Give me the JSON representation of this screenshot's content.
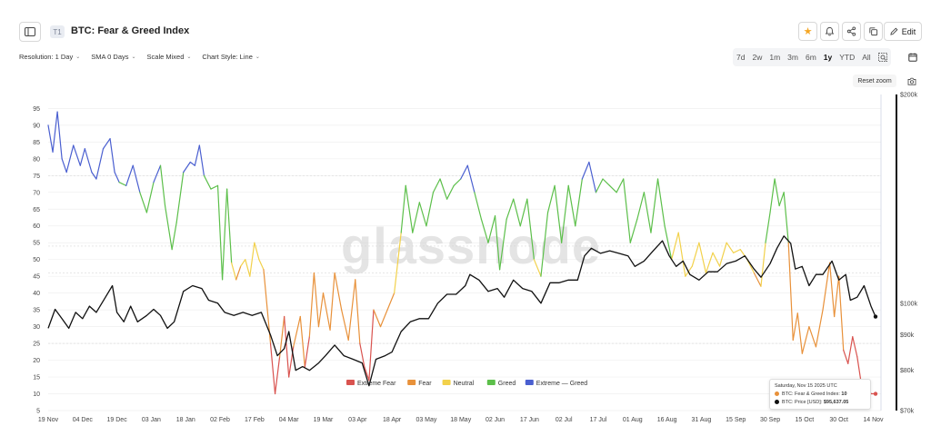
{
  "header": {
    "tier": "T1",
    "title": "BTC: Fear & Greed Index",
    "edit_label": "Edit"
  },
  "controls": {
    "resolution": "Resolution: 1 Day",
    "sma": "SMA 0 Days",
    "scale": "Scale Mixed",
    "chart_style": "Chart Style: Line"
  },
  "ranges": [
    "7d",
    "2w",
    "1m",
    "3m",
    "6m",
    "1y",
    "YTD",
    "All"
  ],
  "active_range": "1y",
  "reset_zoom": "Reset zoom",
  "watermark": "glassnode",
  "tooltip": {
    "date": "Saturday, Nov 15 2025 UTC",
    "fg_label": "BTC: Fear & Greed Index:",
    "fg_value": "10",
    "price_label": "BTC: Price [USD]:",
    "price_value": "$95,637.05"
  },
  "colors": {
    "extreme_fear": "#d9534f",
    "fear": "#e8913a",
    "neutral": "#f2d14b",
    "greed": "#5cbf4a",
    "extreme_greed": "#4a5fd0",
    "price": "#111111"
  },
  "chart_data": {
    "type": "line",
    "x_ticks": [
      "19 Nov",
      "04 Dec",
      "19 Dec",
      "03 Jan",
      "18 Jan",
      "02 Feb",
      "17 Feb",
      "04 Mar",
      "19 Mar",
      "03 Apr",
      "18 Apr",
      "03 May",
      "18 May",
      "02 Jun",
      "17 Jun",
      "02 Jul",
      "17 Jul",
      "01 Aug",
      "16 Aug",
      "31 Aug",
      "15 Sep",
      "30 Sep",
      "15 Oct",
      "30 Oct",
      "14 Nov"
    ],
    "y_left_ticks": [
      5,
      10,
      15,
      20,
      25,
      30,
      35,
      40,
      45,
      50,
      55,
      60,
      65,
      70,
      75,
      80,
      85,
      90,
      95
    ],
    "y_left_range": [
      5,
      97
    ],
    "y_right_ticks": [
      "$200k",
      "$100k",
      "$90k",
      "$80k",
      "$70k"
    ],
    "y_right_scale": "log",
    "y_right_range": [
      70000,
      200000
    ],
    "legend": [
      "Extreme Fear",
      "Fear",
      "Neutral",
      "Greed",
      "Extreme — Greed"
    ],
    "legend_position": "bottom-center",
    "fg_bands": [
      {
        "name": "Extreme Fear",
        "max": 25
      },
      {
        "name": "Fear",
        "max": 46
      },
      {
        "name": "Neutral",
        "max": 54
      },
      {
        "name": "Greed",
        "max": 75
      },
      {
        "name": "Extreme Greed",
        "max": 100
      }
    ],
    "fear_greed": [
      {
        "x": "2024-11-19",
        "y": 90
      },
      {
        "x": "2024-11-21",
        "y": 82
      },
      {
        "x": "2024-11-23",
        "y": 94
      },
      {
        "x": "2024-11-25",
        "y": 80
      },
      {
        "x": "2024-11-27",
        "y": 76
      },
      {
        "x": "2024-11-30",
        "y": 84
      },
      {
        "x": "2024-12-03",
        "y": 78
      },
      {
        "x": "2024-12-05",
        "y": 83
      },
      {
        "x": "2024-12-08",
        "y": 76
      },
      {
        "x": "2024-12-10",
        "y": 74
      },
      {
        "x": "2024-12-13",
        "y": 83
      },
      {
        "x": "2024-12-16",
        "y": 86
      },
      {
        "x": "2024-12-18",
        "y": 76
      },
      {
        "x": "2024-12-20",
        "y": 73
      },
      {
        "x": "2024-12-23",
        "y": 72
      },
      {
        "x": "2024-12-26",
        "y": 78
      },
      {
        "x": "2024-12-29",
        "y": 70
      },
      {
        "x": "2025-01-01",
        "y": 64
      },
      {
        "x": "2025-01-04",
        "y": 73
      },
      {
        "x": "2025-01-07",
        "y": 78
      },
      {
        "x": "2025-01-09",
        "y": 66
      },
      {
        "x": "2025-01-12",
        "y": 53
      },
      {
        "x": "2025-01-14",
        "y": 61
      },
      {
        "x": "2025-01-17",
        "y": 76
      },
      {
        "x": "2025-01-20",
        "y": 79
      },
      {
        "x": "2025-01-22",
        "y": 78
      },
      {
        "x": "2025-01-24",
        "y": 84
      },
      {
        "x": "2025-01-26",
        "y": 75
      },
      {
        "x": "2025-01-29",
        "y": 71
      },
      {
        "x": "2025-02-01",
        "y": 72
      },
      {
        "x": "2025-02-03",
        "y": 44
      },
      {
        "x": "2025-02-05",
        "y": 71
      },
      {
        "x": "2025-02-07",
        "y": 49
      },
      {
        "x": "2025-02-09",
        "y": 44
      },
      {
        "x": "2025-02-11",
        "y": 48
      },
      {
        "x": "2025-02-13",
        "y": 50
      },
      {
        "x": "2025-02-15",
        "y": 45
      },
      {
        "x": "2025-02-17",
        "y": 55
      },
      {
        "x": "2025-02-19",
        "y": 50
      },
      {
        "x": "2025-02-21",
        "y": 47
      },
      {
        "x": "2025-02-24",
        "y": 25
      },
      {
        "x": "2025-02-26",
        "y": 10
      },
      {
        "x": "2025-02-28",
        "y": 21
      },
      {
        "x": "2025-03-02",
        "y": 33
      },
      {
        "x": "2025-03-04",
        "y": 15
      },
      {
        "x": "2025-03-06",
        "y": 24
      },
      {
        "x": "2025-03-09",
        "y": 33
      },
      {
        "x": "2025-03-11",
        "y": 18
      },
      {
        "x": "2025-03-13",
        "y": 27
      },
      {
        "x": "2025-03-15",
        "y": 46
      },
      {
        "x": "2025-03-17",
        "y": 30
      },
      {
        "x": "2025-03-19",
        "y": 40
      },
      {
        "x": "2025-03-22",
        "y": 29
      },
      {
        "x": "2025-03-24",
        "y": 46
      },
      {
        "x": "2025-03-27",
        "y": 35
      },
      {
        "x": "2025-03-30",
        "y": 26
      },
      {
        "x": "2025-04-02",
        "y": 44
      },
      {
        "x": "2025-04-04",
        "y": 25
      },
      {
        "x": "2025-04-06",
        "y": 18
      },
      {
        "x": "2025-04-08",
        "y": 14
      },
      {
        "x": "2025-04-10",
        "y": 35
      },
      {
        "x": "2025-04-13",
        "y": 30
      },
      {
        "x": "2025-04-16",
        "y": 35
      },
      {
        "x": "2025-04-19",
        "y": 40
      },
      {
        "x": "2025-04-22",
        "y": 58
      },
      {
        "x": "2025-04-24",
        "y": 72
      },
      {
        "x": "2025-04-27",
        "y": 58
      },
      {
        "x": "2025-04-30",
        "y": 67
      },
      {
        "x": "2025-05-03",
        "y": 60
      },
      {
        "x": "2025-05-06",
        "y": 70
      },
      {
        "x": "2025-05-09",
        "y": 74
      },
      {
        "x": "2025-05-12",
        "y": 68
      },
      {
        "x": "2025-05-15",
        "y": 72
      },
      {
        "x": "2025-05-18",
        "y": 74
      },
      {
        "x": "2025-05-21",
        "y": 78
      },
      {
        "x": "2025-05-24",
        "y": 70
      },
      {
        "x": "2025-05-27",
        "y": 62
      },
      {
        "x": "2025-05-30",
        "y": 55
      },
      {
        "x": "2025-06-02",
        "y": 63
      },
      {
        "x": "2025-06-04",
        "y": 47
      },
      {
        "x": "2025-06-07",
        "y": 62
      },
      {
        "x": "2025-06-10",
        "y": 68
      },
      {
        "x": "2025-06-13",
        "y": 60
      },
      {
        "x": "2025-06-16",
        "y": 68
      },
      {
        "x": "2025-06-19",
        "y": 50
      },
      {
        "x": "2025-06-22",
        "y": 45
      },
      {
        "x": "2025-06-25",
        "y": 64
      },
      {
        "x": "2025-06-28",
        "y": 72
      },
      {
        "x": "2025-07-01",
        "y": 55
      },
      {
        "x": "2025-07-04",
        "y": 72
      },
      {
        "x": "2025-07-07",
        "y": 60
      },
      {
        "x": "2025-07-10",
        "y": 74
      },
      {
        "x": "2025-07-13",
        "y": 79
      },
      {
        "x": "2025-07-16",
        "y": 70
      },
      {
        "x": "2025-07-19",
        "y": 74
      },
      {
        "x": "2025-07-22",
        "y": 72
      },
      {
        "x": "2025-07-25",
        "y": 70
      },
      {
        "x": "2025-07-28",
        "y": 74
      },
      {
        "x": "2025-07-31",
        "y": 55
      },
      {
        "x": "2025-08-03",
        "y": 62
      },
      {
        "x": "2025-08-06",
        "y": 70
      },
      {
        "x": "2025-08-09",
        "y": 58
      },
      {
        "x": "2025-08-12",
        "y": 74
      },
      {
        "x": "2025-08-15",
        "y": 60
      },
      {
        "x": "2025-08-18",
        "y": 50
      },
      {
        "x": "2025-08-21",
        "y": 58
      },
      {
        "x": "2025-08-24",
        "y": 45
      },
      {
        "x": "2025-08-27",
        "y": 48
      },
      {
        "x": "2025-08-30",
        "y": 55
      },
      {
        "x": "2025-09-02",
        "y": 46
      },
      {
        "x": "2025-09-05",
        "y": 52
      },
      {
        "x": "2025-09-08",
        "y": 48
      },
      {
        "x": "2025-09-11",
        "y": 55
      },
      {
        "x": "2025-09-14",
        "y": 52
      },
      {
        "x": "2025-09-17",
        "y": 53
      },
      {
        "x": "2025-09-20",
        "y": 50
      },
      {
        "x": "2025-09-23",
        "y": 46
      },
      {
        "x": "2025-09-26",
        "y": 42
      },
      {
        "x": "2025-09-28",
        "y": 55
      },
      {
        "x": "2025-09-30",
        "y": 64
      },
      {
        "x": "2025-10-02",
        "y": 74
      },
      {
        "x": "2025-10-04",
        "y": 66
      },
      {
        "x": "2025-10-06",
        "y": 70
      },
      {
        "x": "2025-10-08",
        "y": 55
      },
      {
        "x": "2025-10-10",
        "y": 26
      },
      {
        "x": "2025-10-12",
        "y": 34
      },
      {
        "x": "2025-10-14",
        "y": 22
      },
      {
        "x": "2025-10-17",
        "y": 30
      },
      {
        "x": "2025-10-20",
        "y": 24
      },
      {
        "x": "2025-10-23",
        "y": 35
      },
      {
        "x": "2025-10-26",
        "y": 49
      },
      {
        "x": "2025-10-28",
        "y": 33
      },
      {
        "x": "2025-10-30",
        "y": 45
      },
      {
        "x": "2025-11-01",
        "y": 23
      },
      {
        "x": "2025-11-03",
        "y": 19
      },
      {
        "x": "2025-11-05",
        "y": 27
      },
      {
        "x": "2025-11-07",
        "y": 21
      },
      {
        "x": "2025-11-09",
        "y": 12
      },
      {
        "x": "2025-11-11",
        "y": 14
      },
      {
        "x": "2025-11-13",
        "y": 10
      },
      {
        "x": "2025-11-15",
        "y": 10
      }
    ],
    "btc_price": [
      {
        "x": "2024-11-19",
        "y": 92000
      },
      {
        "x": "2024-11-22",
        "y": 98000
      },
      {
        "x": "2024-11-25",
        "y": 95000
      },
      {
        "x": "2024-11-28",
        "y": 92000
      },
      {
        "x": "2024-12-01",
        "y": 97000
      },
      {
        "x": "2024-12-04",
        "y": 95000
      },
      {
        "x": "2024-12-07",
        "y": 99000
      },
      {
        "x": "2024-12-10",
        "y": 97000
      },
      {
        "x": "2024-12-14",
        "y": 102000
      },
      {
        "x": "2024-12-17",
        "y": 106000
      },
      {
        "x": "2024-12-19",
        "y": 97000
      },
      {
        "x": "2024-12-22",
        "y": 94000
      },
      {
        "x": "2024-12-25",
        "y": 99000
      },
      {
        "x": "2024-12-28",
        "y": 94000
      },
      {
        "x": "2025-01-01",
        "y": 96000
      },
      {
        "x": "2025-01-04",
        "y": 98000
      },
      {
        "x": "2025-01-07",
        "y": 96000
      },
      {
        "x": "2025-01-10",
        "y": 92000
      },
      {
        "x": "2025-01-13",
        "y": 94000
      },
      {
        "x": "2025-01-17",
        "y": 104000
      },
      {
        "x": "2025-01-21",
        "y": 106000
      },
      {
        "x": "2025-01-25",
        "y": 105000
      },
      {
        "x": "2025-01-28",
        "y": 101000
      },
      {
        "x": "2025-02-01",
        "y": 100000
      },
      {
        "x": "2025-02-04",
        "y": 97000
      },
      {
        "x": "2025-02-08",
        "y": 96000
      },
      {
        "x": "2025-02-12",
        "y": 97000
      },
      {
        "x": "2025-02-16",
        "y": 96000
      },
      {
        "x": "2025-02-20",
        "y": 97000
      },
      {
        "x": "2025-02-24",
        "y": 90000
      },
      {
        "x": "2025-02-27",
        "y": 84000
      },
      {
        "x": "2025-03-02",
        "y": 86000
      },
      {
        "x": "2025-03-04",
        "y": 91000
      },
      {
        "x": "2025-03-07",
        "y": 80000
      },
      {
        "x": "2025-03-10",
        "y": 81000
      },
      {
        "x": "2025-03-13",
        "y": 80000
      },
      {
        "x": "2025-03-17",
        "y": 82000
      },
      {
        "x": "2025-03-20",
        "y": 84000
      },
      {
        "x": "2025-03-24",
        "y": 87000
      },
      {
        "x": "2025-03-28",
        "y": 84000
      },
      {
        "x": "2025-04-01",
        "y": 83000
      },
      {
        "x": "2025-04-05",
        "y": 82000
      },
      {
        "x": "2025-04-08",
        "y": 76000
      },
      {
        "x": "2025-04-11",
        "y": 83000
      },
      {
        "x": "2025-04-15",
        "y": 84000
      },
      {
        "x": "2025-04-18",
        "y": 85000
      },
      {
        "x": "2025-04-22",
        "y": 91000
      },
      {
        "x": "2025-04-26",
        "y": 94000
      },
      {
        "x": "2025-04-30",
        "y": 95000
      },
      {
        "x": "2025-05-04",
        "y": 95000
      },
      {
        "x": "2025-05-08",
        "y": 100000
      },
      {
        "x": "2025-05-12",
        "y": 103000
      },
      {
        "x": "2025-05-16",
        "y": 103000
      },
      {
        "x": "2025-05-20",
        "y": 106000
      },
      {
        "x": "2025-05-22",
        "y": 110000
      },
      {
        "x": "2025-05-26",
        "y": 108000
      },
      {
        "x": "2025-05-30",
        "y": 104000
      },
      {
        "x": "2025-06-03",
        "y": 105000
      },
      {
        "x": "2025-06-06",
        "y": 102000
      },
      {
        "x": "2025-06-10",
        "y": 108000
      },
      {
        "x": "2025-06-14",
        "y": 105000
      },
      {
        "x": "2025-06-18",
        "y": 104000
      },
      {
        "x": "2025-06-22",
        "y": 100000
      },
      {
        "x": "2025-06-26",
        "y": 107000
      },
      {
        "x": "2025-06-30",
        "y": 107000
      },
      {
        "x": "2025-07-04",
        "y": 108000
      },
      {
        "x": "2025-07-08",
        "y": 108000
      },
      {
        "x": "2025-07-11",
        "y": 117000
      },
      {
        "x": "2025-07-14",
        "y": 120000
      },
      {
        "x": "2025-07-18",
        "y": 118000
      },
      {
        "x": "2025-07-22",
        "y": 119000
      },
      {
        "x": "2025-07-26",
        "y": 118000
      },
      {
        "x": "2025-07-30",
        "y": 117000
      },
      {
        "x": "2025-08-02",
        "y": 113000
      },
      {
        "x": "2025-08-06",
        "y": 115000
      },
      {
        "x": "2025-08-10",
        "y": 119000
      },
      {
        "x": "2025-08-14",
        "y": 123000
      },
      {
        "x": "2025-08-17",
        "y": 117000
      },
      {
        "x": "2025-08-20",
        "y": 113000
      },
      {
        "x": "2025-08-23",
        "y": 115000
      },
      {
        "x": "2025-08-26",
        "y": 110000
      },
      {
        "x": "2025-08-30",
        "y": 108000
      },
      {
        "x": "2025-09-03",
        "y": 111000
      },
      {
        "x": "2025-09-07",
        "y": 111000
      },
      {
        "x": "2025-09-11",
        "y": 114000
      },
      {
        "x": "2025-09-15",
        "y": 115000
      },
      {
        "x": "2025-09-19",
        "y": 117000
      },
      {
        "x": "2025-09-23",
        "y": 112000
      },
      {
        "x": "2025-09-26",
        "y": 109000
      },
      {
        "x": "2025-09-30",
        "y": 114000
      },
      {
        "x": "2025-10-03",
        "y": 120000
      },
      {
        "x": "2025-10-06",
        "y": 125000
      },
      {
        "x": "2025-10-09",
        "y": 122000
      },
      {
        "x": "2025-10-11",
        "y": 112000
      },
      {
        "x": "2025-10-14",
        "y": 113000
      },
      {
        "x": "2025-10-17",
        "y": 106000
      },
      {
        "x": "2025-10-20",
        "y": 110000
      },
      {
        "x": "2025-10-23",
        "y": 110000
      },
      {
        "x": "2025-10-27",
        "y": 115000
      },
      {
        "x": "2025-10-30",
        "y": 108000
      },
      {
        "x": "2025-11-02",
        "y": 110000
      },
      {
        "x": "2025-11-04",
        "y": 101000
      },
      {
        "x": "2025-11-07",
        "y": 102000
      },
      {
        "x": "2025-11-10",
        "y": 106000
      },
      {
        "x": "2025-11-13",
        "y": 99000
      },
      {
        "x": "2025-11-15",
        "y": 95637
      }
    ]
  }
}
